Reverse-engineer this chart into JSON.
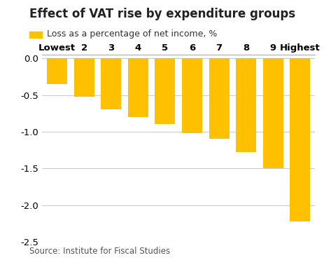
{
  "categories": [
    "Lowest",
    "2",
    "3",
    "4",
    "5",
    "6",
    "7",
    "8",
    "9",
    "Highest"
  ],
  "values": [
    -0.35,
    -0.52,
    -0.7,
    -0.8,
    -0.9,
    -1.02,
    -1.1,
    -1.28,
    -1.5,
    -2.22
  ],
  "bar_color": "#FFC000",
  "title": "Effect of VAT rise by expenditure groups",
  "legend_label": "Loss as a percentage of net income, %",
  "ylim": [
    -2.5,
    0.05
  ],
  "yticks": [
    0.0,
    -0.5,
    -1.0,
    -1.5,
    -2.0,
    -2.5
  ],
  "source": "Source: Institute for Fiscal Studies",
  "title_fontsize": 12,
  "tick_fontsize": 9.5,
  "legend_fontsize": 9,
  "source_fontsize": 8.5,
  "background_color": "#ffffff",
  "grid_color": "#cccccc",
  "bar_width": 0.75
}
